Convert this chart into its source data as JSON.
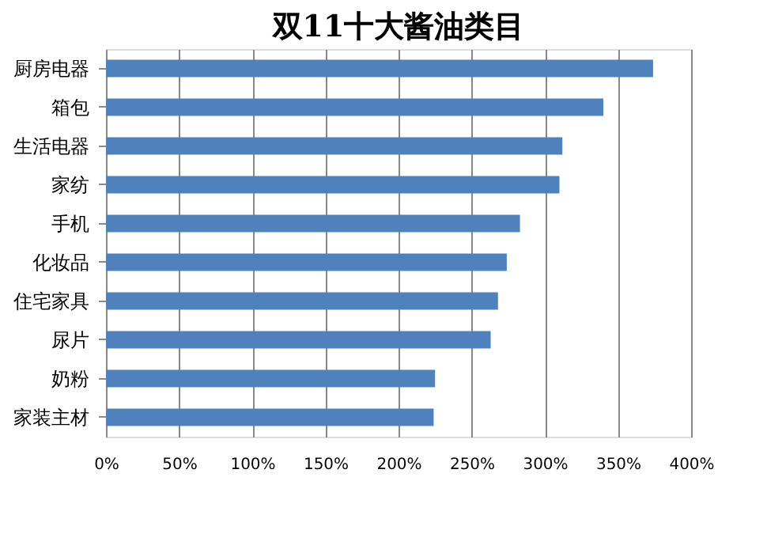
{
  "chart_data": {
    "type": "bar",
    "orientation": "horizontal",
    "title": "双11十大酱油类目",
    "categories": [
      "厨房电器",
      "箱包",
      "生活电器",
      "家纺",
      "手机",
      "化妆品",
      "住宅家具",
      "尿片",
      "奶粉",
      "家装主材"
    ],
    "values": [
      374,
      340,
      312,
      310,
      283,
      274,
      268,
      263,
      225,
      224
    ],
    "color": "#4f81bd",
    "xlim": [
      0,
      400
    ],
    "xticks": [
      {
        "value": 0,
        "label": "0%"
      },
      {
        "value": 50,
        "label": "50%"
      },
      {
        "value": 100,
        "label": "100%"
      },
      {
        "value": 150,
        "label": "150%"
      },
      {
        "value": 200,
        "label": "200%"
      },
      {
        "value": 250,
        "label": "250%"
      },
      {
        "value": 300,
        "label": "300%"
      },
      {
        "value": 350,
        "label": "350%"
      },
      {
        "value": 400,
        "label": "400%"
      }
    ],
    "grid": "x"
  }
}
